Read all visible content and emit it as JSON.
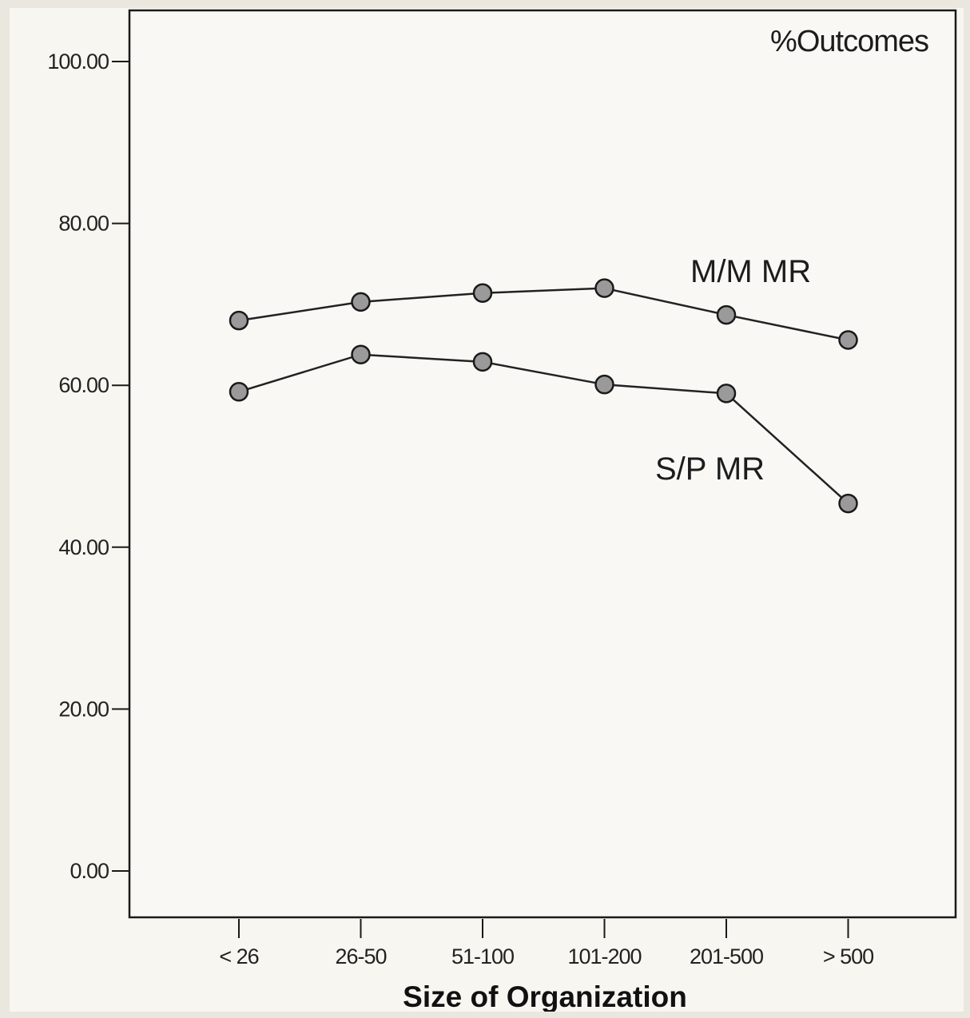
{
  "chart_data": {
    "type": "line",
    "title": "%Outcomes",
    "xlabel": "Size of Organization",
    "ylabel": "",
    "categories": [
      "< 26",
      "26-50",
      "51-100",
      "101-200",
      "201-500",
      "> 500"
    ],
    "ylim": [
      0,
      100
    ],
    "yticks": [
      "0.00",
      "20.00",
      "40.00",
      "60.00",
      "80.00",
      "100.00"
    ],
    "grid": false,
    "series": [
      {
        "name": "M/M MR",
        "values": [
          68.0,
          70.3,
          71.4,
          72.0,
          68.7,
          65.6
        ]
      },
      {
        "name": "S/P MR",
        "values": [
          59.2,
          63.8,
          62.9,
          60.1,
          59.0,
          45.4
        ]
      }
    ],
    "colors": {
      "marker_fill": "#9a9a9a",
      "line": "#222222",
      "frame": "#1a1a1a"
    }
  }
}
